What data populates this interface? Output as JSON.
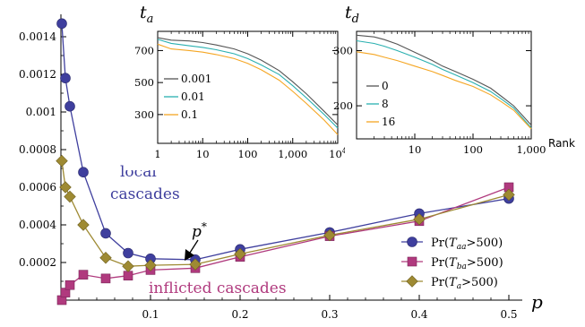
{
  "chart_data": [
    {
      "type": "line",
      "xlabel": "p",
      "ylabel": "",
      "xlim": [
        0,
        0.5
      ],
      "ylim": [
        0,
        0.0015
      ],
      "x_ticks": [
        0.1,
        0.2,
        0.3,
        0.4,
        0.5
      ],
      "x_tick_labels": [
        "0.1",
        "0.2",
        "0.3",
        "0.4",
        "0.5"
      ],
      "y_ticks": [
        0.0002,
        0.0004,
        0.0006,
        0.0008,
        0.001,
        0.0012,
        0.0014
      ],
      "y_tick_labels": [
        "0.0002",
        "0.0004",
        "0.0006",
        "0.0008",
        "0.001",
        "0.0012",
        "0.0014"
      ],
      "legend_position": "bottom-right",
      "series": [
        {
          "name": "Pr(T_aa>500)",
          "legend_base": "Pr(",
          "legend_var": "T",
          "legend_sub": "aa",
          "legend_rest": ">500)",
          "color": "#3f3f9e",
          "marker": "circle",
          "x": [
            0.001,
            0.005,
            0.01,
            0.025,
            0.05,
            0.075,
            0.1,
            0.15,
            0.2,
            0.3,
            0.4,
            0.5
          ],
          "y": [
            0.00147,
            0.00118,
            0.00103,
            0.00068,
            0.000355,
            0.00025,
            0.00022,
            0.000215,
            0.00027,
            0.00036,
            0.00046,
            0.00054
          ]
        },
        {
          "name": "Pr(T_ba>500)",
          "legend_base": "Pr(",
          "legend_var": "T",
          "legend_sub": "ba",
          "legend_rest": ">500)",
          "color": "#b03a7e",
          "marker": "square",
          "x": [
            0.001,
            0.005,
            0.01,
            0.025,
            0.05,
            0.075,
            0.1,
            0.15,
            0.2,
            0.3,
            0.4,
            0.5
          ],
          "y": [
            0.0,
            4e-05,
            8e-05,
            0.000135,
            0.000115,
            0.00013,
            0.00016,
            0.00017,
            0.00023,
            0.00034,
            0.00042,
            0.0006
          ]
        },
        {
          "name": "Pr(T_a>500)",
          "legend_base": "Pr(",
          "legend_var": "T",
          "legend_sub": "a",
          "legend_rest": ">500)",
          "color": "#9e8a33",
          "marker": "diamond",
          "x": [
            0.001,
            0.005,
            0.01,
            0.025,
            0.05,
            0.075,
            0.1,
            0.15,
            0.2,
            0.3,
            0.4,
            0.5
          ],
          "y": [
            0.00074,
            0.0006,
            0.00055,
            0.0004,
            0.000225,
            0.00018,
            0.000185,
            0.00019,
            0.000245,
            0.000345,
            0.00043,
            0.00056
          ]
        }
      ],
      "annotations": {
        "local": "local",
        "cascades": "cascades",
        "inflicted": "inflicted cascades",
        "pstar_base": "p",
        "pstar_sup": "*",
        "pstar_point": [
          0.13,
          0.0002
        ]
      }
    },
    {
      "type": "line",
      "title": "t",
      "title_sub": "a",
      "xscale": "log",
      "xlim": [
        1,
        10000
      ],
      "ylim": [
        120,
        820
      ],
      "x_ticks": [
        1,
        10,
        100,
        1000
      ],
      "x_tick_labels": [
        "1",
        "10",
        "100",
        "1,000"
      ],
      "x_tick_last_base": "10",
      "x_tick_last_sup": "4",
      "y_ticks": [
        300,
        500,
        700
      ],
      "y_tick_labels": [
        "300",
        "500",
        "700"
      ],
      "legend_position": "middle-left",
      "series": [
        {
          "name": "0.001",
          "color": "#555555",
          "x": [
            1,
            2,
            5,
            10,
            20,
            50,
            100,
            200,
            500,
            1000,
            2000,
            5000,
            10000
          ],
          "y": [
            780,
            765,
            760,
            750,
            735,
            710,
            680,
            640,
            575,
            505,
            430,
            320,
            235
          ]
        },
        {
          "name": "0.01",
          "color": "#2ab0b0",
          "x": [
            1,
            2,
            5,
            10,
            20,
            50,
            100,
            200,
            500,
            1000,
            2000,
            5000,
            10000
          ],
          "y": [
            770,
            745,
            730,
            720,
            705,
            680,
            650,
            610,
            550,
            480,
            405,
            300,
            215
          ]
        },
        {
          "name": "0.1",
          "color": "#f5a623",
          "x": [
            1,
            2,
            5,
            10,
            20,
            50,
            100,
            200,
            500,
            1000,
            2000,
            5000,
            10000
          ],
          "y": [
            740,
            710,
            700,
            690,
            675,
            650,
            620,
            580,
            515,
            445,
            370,
            265,
            175
          ]
        }
      ]
    },
    {
      "type": "line",
      "title": "t",
      "title_sub": "d",
      "xscale": "log",
      "xlabel": "Rank",
      "xlim": [
        1,
        1000
      ],
      "ylim": [
        140,
        335
      ],
      "x_ticks": [
        10,
        100,
        1000
      ],
      "x_tick_labels": [
        "10",
        "100",
        "1,000"
      ],
      "y_ticks": [
        200,
        300
      ],
      "y_tick_labels": [
        "200",
        "300"
      ],
      "legend_position": "middle-left",
      "series": [
        {
          "name": "0",
          "color": "#555555",
          "x": [
            1,
            2,
            3,
            5,
            10,
            20,
            30,
            50,
            100,
            200,
            300,
            500,
            1000
          ],
          "y": [
            328,
            325,
            320,
            312,
            297,
            282,
            272,
            262,
            248,
            232,
            218,
            200,
            165
          ]
        },
        {
          "name": "8",
          "color": "#2ab0b0",
          "x": [
            1,
            2,
            3,
            5,
            10,
            20,
            30,
            50,
            100,
            200,
            300,
            500,
            1000
          ],
          "y": [
            318,
            313,
            308,
            300,
            288,
            275,
            266,
            256,
            242,
            226,
            213,
            196,
            160
          ]
        },
        {
          "name": "16",
          "color": "#f5a623",
          "x": [
            1,
            2,
            3,
            5,
            10,
            20,
            30,
            50,
            100,
            200,
            300,
            500,
            1000
          ],
          "y": [
            298,
            293,
            288,
            282,
            272,
            262,
            255,
            246,
            235,
            220,
            208,
            192,
            158
          ]
        }
      ]
    }
  ]
}
